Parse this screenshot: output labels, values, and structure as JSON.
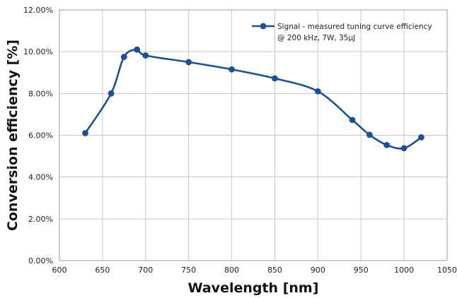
{
  "chart_data": {
    "type": "line",
    "xlabel": "Wavelength [nm]",
    "ylabel": "Conversion efficiency [%]",
    "xlim": [
      600,
      1050
    ],
    "ylim": [
      0,
      12
    ],
    "x_ticks": [
      "600",
      "650",
      "700",
      "750",
      "800",
      "850",
      "900",
      "950",
      "1000",
      "1050"
    ],
    "y_ticks": [
      "0.00%",
      "2.00%",
      "4.00%",
      "6.00%",
      "8.00%",
      "10.00%",
      "12.00%"
    ],
    "grid": true,
    "legend_position": "top-right",
    "colors": {
      "series": "#1f4e93",
      "grid": "#c8c8c8",
      "frame": "#9a9a9a"
    },
    "series": [
      {
        "name": "Signal - measured tuning curve efficiency",
        "name_line2": "@ 200 kHz, 7W, 35µJ",
        "x": [
          630,
          660,
          675,
          690,
          700,
          750,
          800,
          850,
          900,
          940,
          960,
          980,
          1000,
          1020
        ],
        "y": [
          6.1,
          8.0,
          9.75,
          10.1,
          9.82,
          9.5,
          9.15,
          8.72,
          8.1,
          6.73,
          6.02,
          5.53,
          5.38,
          5.9
        ]
      }
    ]
  }
}
